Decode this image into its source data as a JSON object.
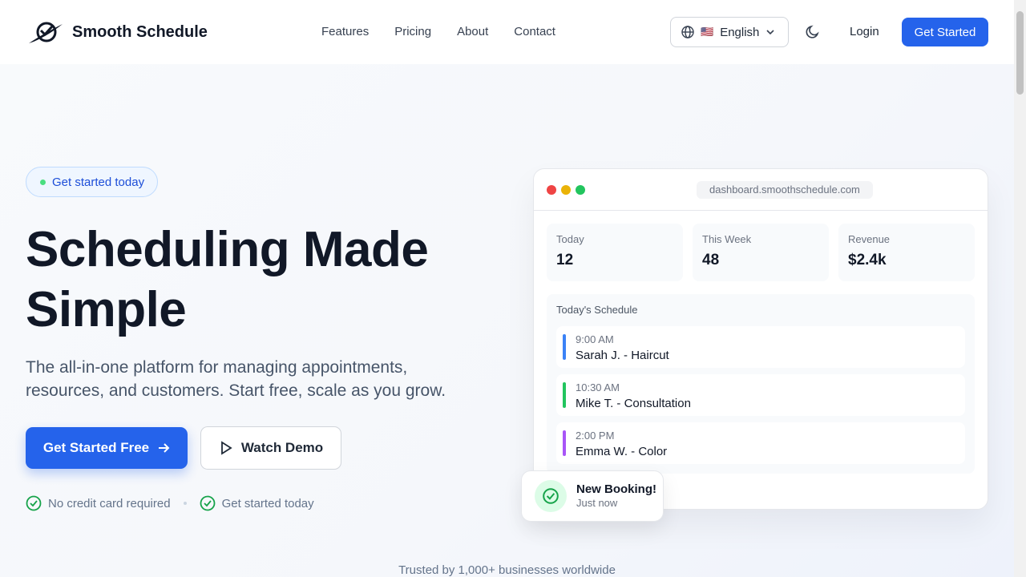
{
  "brand": {
    "name": "Smooth Schedule"
  },
  "nav": {
    "links": [
      "Features",
      "Pricing",
      "About",
      "Contact"
    ],
    "language": "English",
    "login": "Login",
    "get_started": "Get Started"
  },
  "hero": {
    "badge": "Get started today",
    "title_line1": "Scheduling Made",
    "title_line2": "Simple",
    "subtitle": "The all-in-one platform for managing appointments, resources, and customers. Start free, scale as you grow.",
    "primary_cta": "Get Started Free",
    "secondary_cta": "Watch Demo",
    "checks": [
      "No credit card required",
      "Get started today"
    ]
  },
  "dashboard": {
    "url": "dashboard.smoothschedule.com",
    "stats": [
      {
        "label": "Today",
        "value": "12"
      },
      {
        "label": "This Week",
        "value": "48"
      },
      {
        "label": "Revenue",
        "value": "$2.4k"
      }
    ],
    "schedule_title": "Today's Schedule",
    "appointments": [
      {
        "time": "9:00 AM",
        "name": "Sarah J. - Haircut",
        "color": "#3b82f6"
      },
      {
        "time": "10:30 AM",
        "name": "Mike T. - Consultation",
        "color": "#22c55e"
      },
      {
        "time": "2:00 PM",
        "name": "Emma W. - Color",
        "color": "#a855f7"
      }
    ]
  },
  "toast": {
    "title": "New Booking!",
    "time": "Just now"
  },
  "trusted": "Trusted by 1,000+ businesses worldwide",
  "colors": {
    "accent": "#2563eb",
    "success": "#16a34a"
  }
}
